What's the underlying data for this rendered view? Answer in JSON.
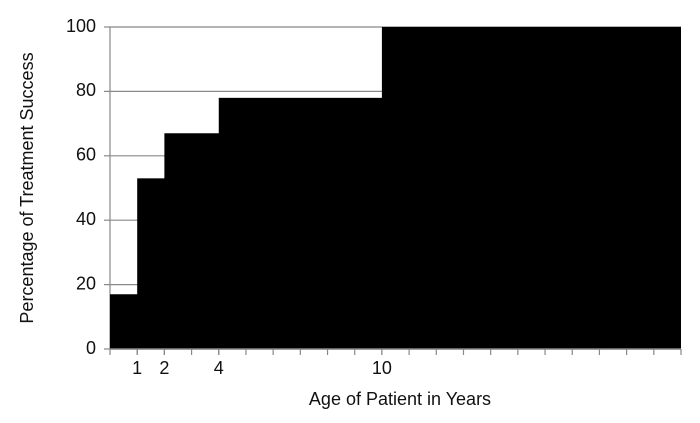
{
  "chart_data": {
    "type": "step-area",
    "x_label": "Age of Patient in Years",
    "y_label": "Percentage of Treatment Success",
    "x": [
      0,
      1,
      2,
      4,
      10
    ],
    "values": [
      17,
      53,
      67,
      78,
      100
    ],
    "color": "#000000",
    "xlim": [
      0,
      21
    ],
    "xticks": [
      1,
      2,
      4,
      10
    ],
    "ylim": [
      0,
      100
    ],
    "yticks": [
      0,
      20,
      40,
      60,
      80,
      100
    ],
    "grid": true
  }
}
